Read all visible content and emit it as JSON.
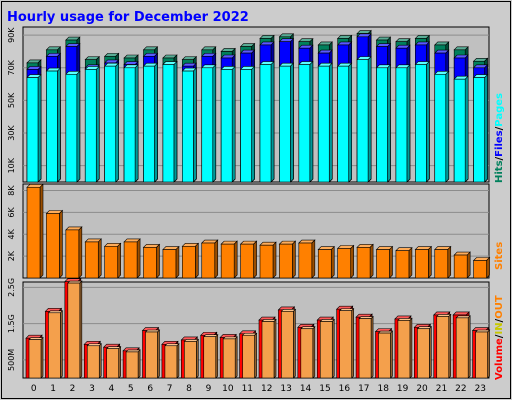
{
  "title": "Hourly usage for December 2022",
  "colors": {
    "frame_bg": "#cccccc",
    "plot_bg": "#c0c0c0",
    "title": "#0000ff",
    "hits": "#00805c",
    "files": "#0000ff",
    "pages": "#00ffff",
    "sites": "#ff8000",
    "kbytes": "#ff0000",
    "in": "#ffff00",
    "out": "#ff8000"
  },
  "legends": {
    "top": [
      {
        "text": "Hits",
        "color": "#00805c"
      },
      {
        "text": "/",
        "color": "#000000"
      },
      {
        "text": "Files",
        "color": "#0000ff"
      },
      {
        "text": "/",
        "color": "#000000"
      },
      {
        "text": "Pages",
        "color": "#00ffff"
      }
    ],
    "middle": [
      {
        "text": "Sites",
        "color": "#ff8000"
      }
    ],
    "bottom": [
      {
        "text": "Volume",
        "color": "#ff0000"
      },
      {
        "text": "/",
        "color": "#000000"
      },
      {
        "text": "IN",
        "color": "#c8c800"
      },
      {
        "text": "/",
        "color": "#000000"
      },
      {
        "text": "OUT",
        "color": "#ff8000"
      }
    ]
  },
  "chart_data": [
    {
      "type": "bar",
      "name": "hits-files-pages",
      "categories": [
        "0",
        "1",
        "2",
        "3",
        "4",
        "5",
        "6",
        "7",
        "8",
        "9",
        "10",
        "11",
        "12",
        "13",
        "14",
        "15",
        "16",
        "17",
        "18",
        "19",
        "20",
        "21",
        "22",
        "23"
      ],
      "ylim": [
        0,
        95
      ],
      "y_unit_suffix": "K",
      "yticks": [
        10,
        30,
        50,
        70,
        90
      ],
      "ytick_labels": [
        "10K",
        "30K",
        "50K",
        "70K",
        "90K"
      ],
      "series": [
        {
          "name": "Hits",
          "values": [
            73,
            81,
            87,
            75,
            77,
            76,
            81,
            76,
            75,
            81,
            80,
            83,
            88,
            89,
            86,
            84,
            88,
            91,
            87,
            86,
            88,
            84,
            81,
            74
          ]
        },
        {
          "name": "Files",
          "values": [
            69,
            77,
            83,
            70,
            73,
            72,
            77,
            72,
            71,
            77,
            76,
            79,
            84,
            86,
            82,
            79,
            84,
            89,
            83,
            82,
            84,
            79,
            76,
            70
          ]
        },
        {
          "name": "Pages",
          "values": [
            64,
            68,
            66,
            69,
            71,
            70,
            71,
            72,
            68,
            70,
            69,
            69,
            72,
            71,
            72,
            71,
            71,
            75,
            70,
            70,
            72,
            66,
            63,
            64
          ]
        }
      ]
    },
    {
      "type": "bar",
      "name": "sites",
      "categories": [
        "0",
        "1",
        "2",
        "3",
        "4",
        "5",
        "6",
        "7",
        "8",
        "9",
        "10",
        "11",
        "12",
        "13",
        "14",
        "15",
        "16",
        "17",
        "18",
        "19",
        "20",
        "21",
        "22",
        "23"
      ],
      "ylim": [
        0,
        8.6
      ],
      "y_unit_suffix": "K",
      "yticks": [
        2,
        4,
        6,
        8
      ],
      "ytick_labels": [
        "2K",
        "4K",
        "6K",
        "8K"
      ],
      "series": [
        {
          "name": "Sites",
          "values": [
            8.3,
            5.9,
            4.4,
            3.3,
            2.9,
            3.3,
            2.8,
            2.6,
            2.9,
            3.2,
            3.1,
            3.1,
            3.0,
            3.1,
            3.2,
            2.6,
            2.7,
            2.8,
            2.6,
            2.5,
            2.6,
            2.6,
            2.1,
            1.6
          ]
        }
      ]
    },
    {
      "type": "bar",
      "name": "volume",
      "categories": [
        "0",
        "1",
        "2",
        "3",
        "4",
        "5",
        "6",
        "7",
        "8",
        "9",
        "10",
        "11",
        "12",
        "13",
        "14",
        "15",
        "16",
        "17",
        "18",
        "19",
        "20",
        "21",
        "22",
        "23"
      ],
      "ylim": [
        0,
        2.65
      ],
      "y_unit_suffix": "G",
      "yticks": [
        0.5,
        1.5,
        2.5
      ],
      "ytick_labels": [
        "500M",
        "1.5G",
        "2.5G"
      ],
      "series": [
        {
          "name": "Volume",
          "values": [
            1.1,
            1.84,
            2.66,
            0.93,
            0.85,
            0.75,
            1.31,
            0.93,
            1.05,
            1.18,
            1.12,
            1.22,
            1.6,
            1.88,
            1.4,
            1.6,
            1.9,
            1.68,
            1.28,
            1.63,
            1.4,
            1.74,
            1.74,
            1.31
          ]
        },
        {
          "name": "OUT",
          "values": [
            1.06,
            1.8,
            2.62,
            0.89,
            0.81,
            0.72,
            1.27,
            0.89,
            1.01,
            1.14,
            1.08,
            1.18,
            1.56,
            1.84,
            1.36,
            1.56,
            1.86,
            1.64,
            1.24,
            1.59,
            1.36,
            1.7,
            1.66,
            1.27
          ]
        }
      ]
    }
  ]
}
